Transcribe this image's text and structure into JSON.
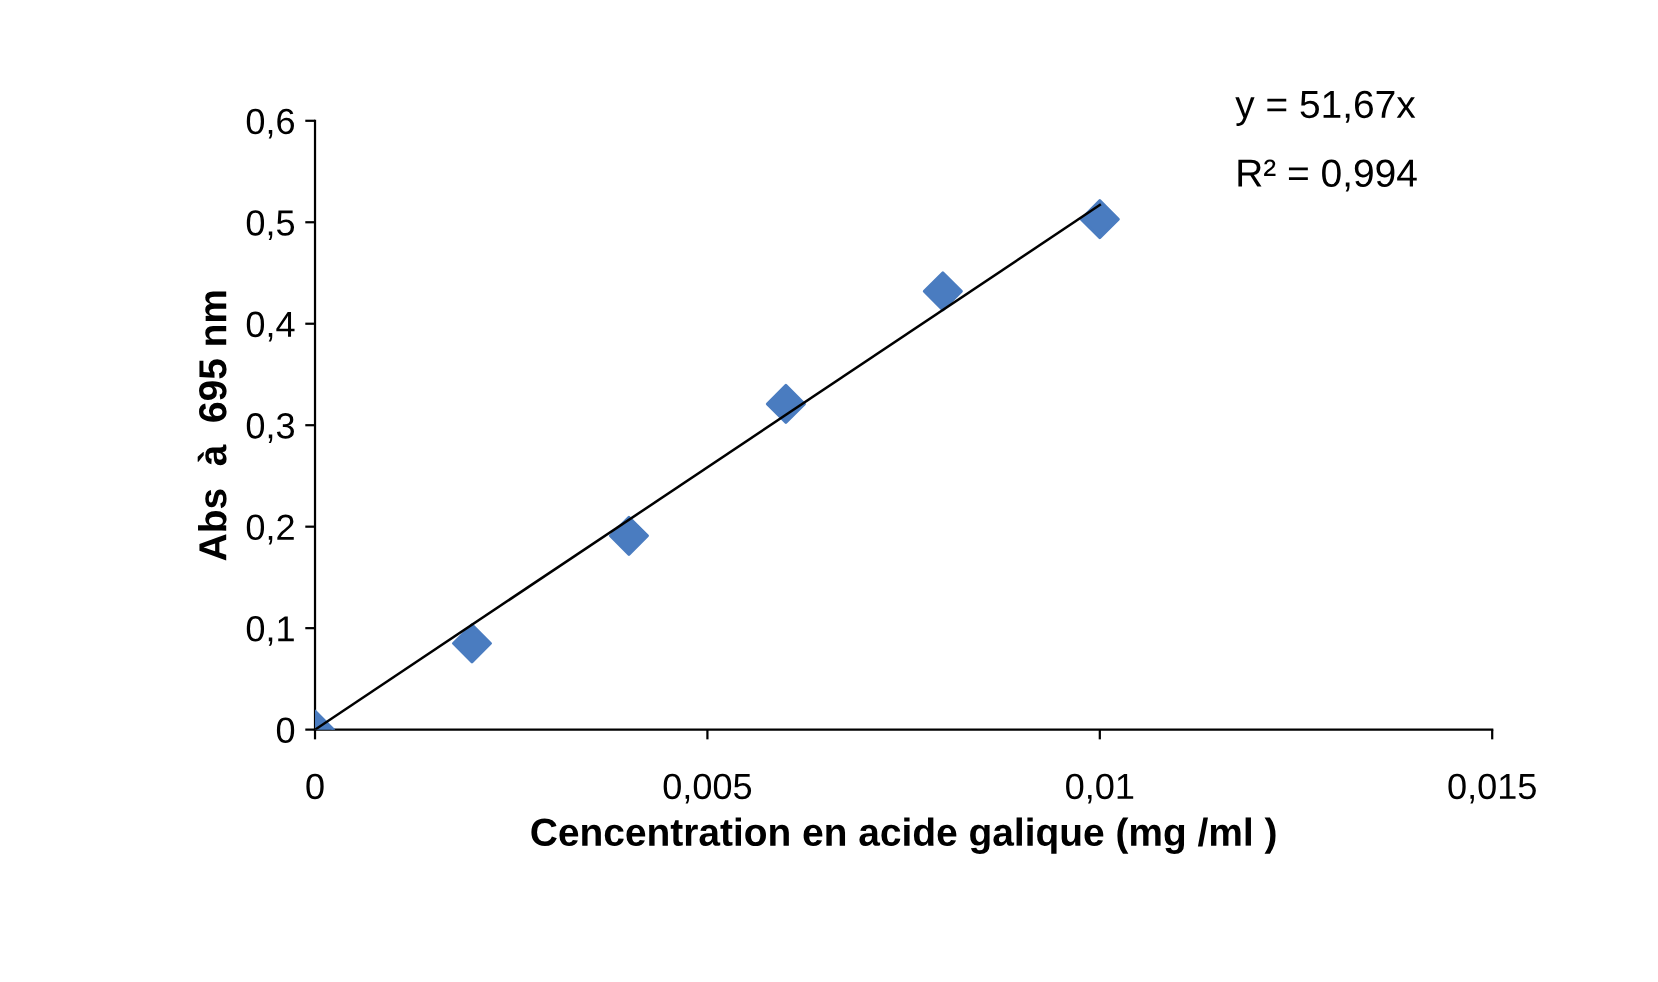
{
  "chart_data": {
    "type": "scatter",
    "xlabel": "Cencentration en acide galique (mg /ml )",
    "ylabel": "Abs  à  695 nm",
    "annotations": [
      "y = 51,67x",
      "R² = 0,994"
    ],
    "series": [
      {
        "color": "#4a7cc0",
        "marker": "diamond",
        "x": [
          0,
          0.002,
          0.004,
          0.006,
          0.008,
          0.01
        ],
        "values": [
          0,
          0.085,
          0.191,
          0.321,
          0.432,
          0.503
        ]
      },
      {
        "type": "line",
        "color": "#000000",
        "marker": "none",
        "line_style": "solid",
        "x": [
          0,
          0.01
        ],
        "values": [
          0,
          0.517
        ]
      }
    ],
    "xlim": [
      0,
      0.015
    ],
    "ylim": [
      0,
      0.6
    ],
    "xticks": [
      0,
      {
        "value": 0.005,
        "label": "0,005"
      },
      {
        "value": 0.01,
        "label": "0,01"
      },
      {
        "value": 0.015,
        "label": "0,015"
      }
    ],
    "yticks": [
      0,
      {
        "value": 0.1,
        "label": "0,1"
      },
      {
        "value": 0.2,
        "label": "0,2"
      },
      {
        "value": 0.3,
        "label": "0,3"
      },
      {
        "value": 0.4,
        "label": "0,4"
      },
      {
        "value": 0.5,
        "label": "0,5"
      },
      {
        "value": 0.6,
        "label": "0,6"
      }
    ],
    "grid": false,
    "legend": false
  }
}
